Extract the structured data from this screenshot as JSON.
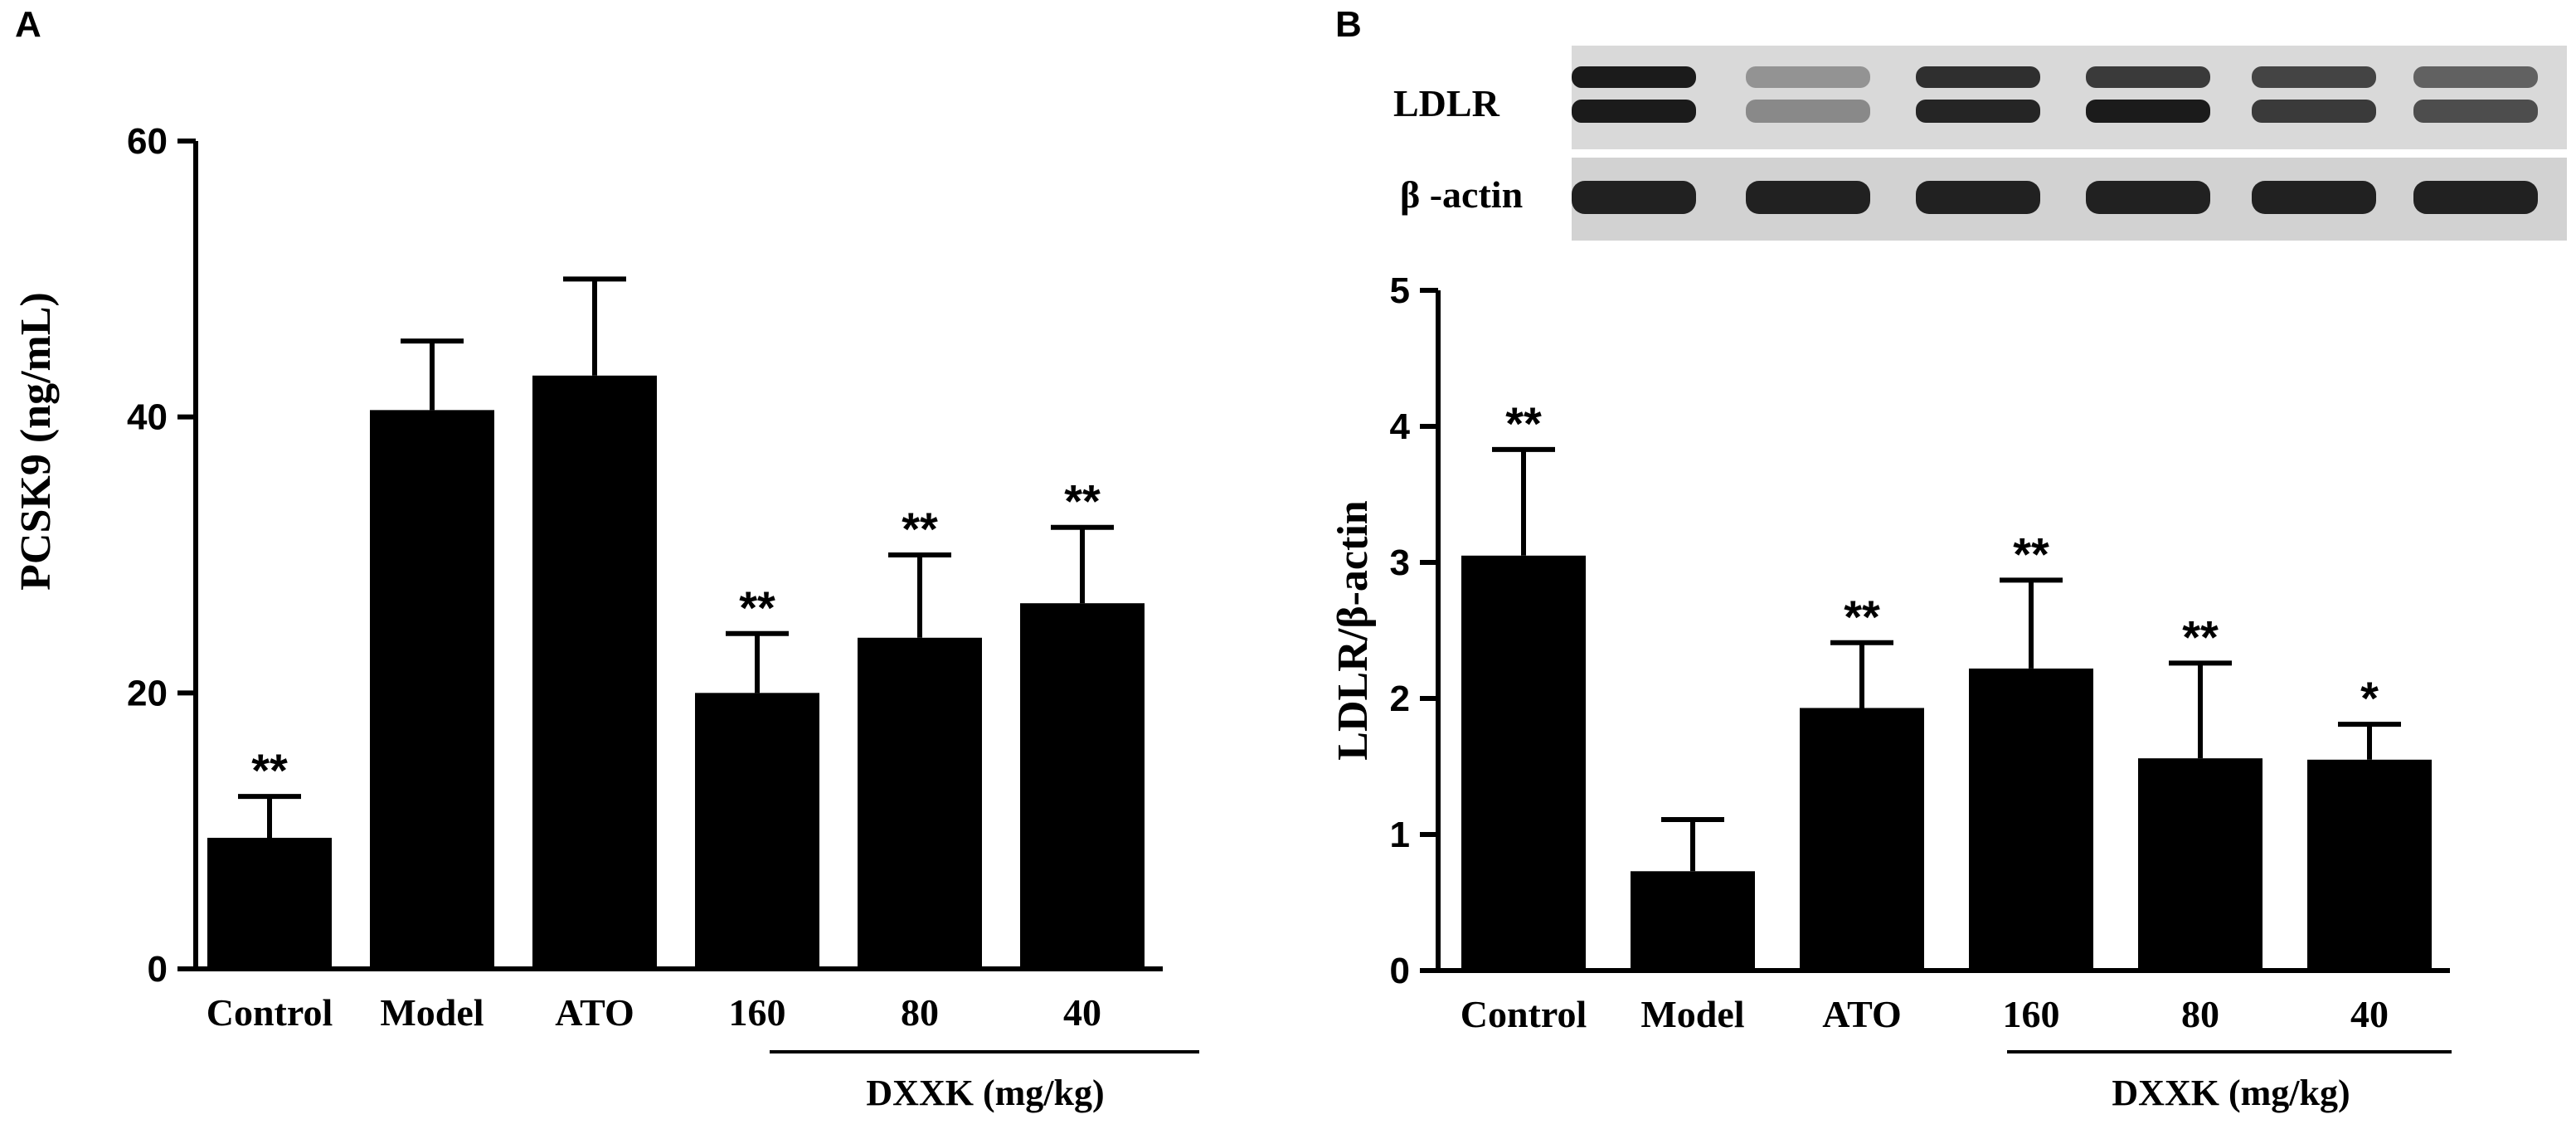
{
  "panels": {
    "a_label": "A",
    "b_label": "B"
  },
  "blot": {
    "ldlr_label": "LDLR",
    "actin_label": "β -actin"
  },
  "chart_data": [
    {
      "type": "bar",
      "panel": "A",
      "categories": [
        "Control",
        "Model",
        "ATO",
        "160",
        "80",
        "40"
      ],
      "values": [
        9.5,
        40.5,
        43,
        20,
        24,
        26.5
      ],
      "errors": [
        3,
        5,
        7,
        4.3,
        6,
        5.5
      ],
      "significance": [
        "**",
        "",
        "",
        "**",
        "**",
        "**"
      ],
      "ylabel": "PCSK9 (ng/mL)",
      "ylim": [
        0,
        60
      ],
      "yticks": [
        "0",
        "20",
        "40",
        "60"
      ],
      "group_label": "DXXK (mg/kg)",
      "bar_color": "#000000"
    },
    {
      "type": "bar",
      "panel": "B",
      "categories": [
        "Control",
        "Model",
        "ATO",
        "160",
        "80",
        "40"
      ],
      "values": [
        3.05,
        0.73,
        1.93,
        2.22,
        1.56,
        1.55
      ],
      "errors": [
        0.78,
        0.38,
        0.48,
        0.65,
        0.7,
        0.26
      ],
      "significance": [
        "**",
        "",
        "**",
        "**",
        "**",
        "*"
      ],
      "ylabel": "LDLR/β-actin",
      "ylim": [
        0,
        5
      ],
      "yticks": [
        "0",
        "1",
        "2",
        "3",
        "4",
        "5"
      ],
      "group_label": "DXXK (mg/kg)",
      "bar_color": "#000000"
    }
  ]
}
